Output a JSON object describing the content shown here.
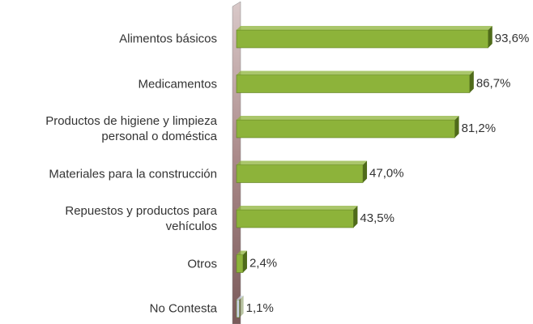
{
  "chart_data": {
    "type": "bar",
    "orientation": "horizontal",
    "categories": [
      "Alimentos básicos",
      "Medicamentos",
      "Productos de higiene y limpieza\npersonal o doméstica",
      "Materiales para la construcción",
      "Repuestos y productos para\nvehículos",
      "Otros",
      "No Contesta"
    ],
    "values": [
      93.6,
      86.7,
      81.2,
      47.0,
      43.5,
      2.4,
      1.1
    ],
    "value_labels": [
      "93,6%",
      "86,7%",
      "81,2%",
      "47,0%",
      "43,5%",
      "2,4%",
      "1,1%"
    ],
    "colors": [
      "#8db33a",
      "#8db33a",
      "#8db33a",
      "#8db33a",
      "#8db33a",
      "#8db33a",
      "#c9d1e2"
    ],
    "xlim": [
      0,
      100
    ]
  }
}
